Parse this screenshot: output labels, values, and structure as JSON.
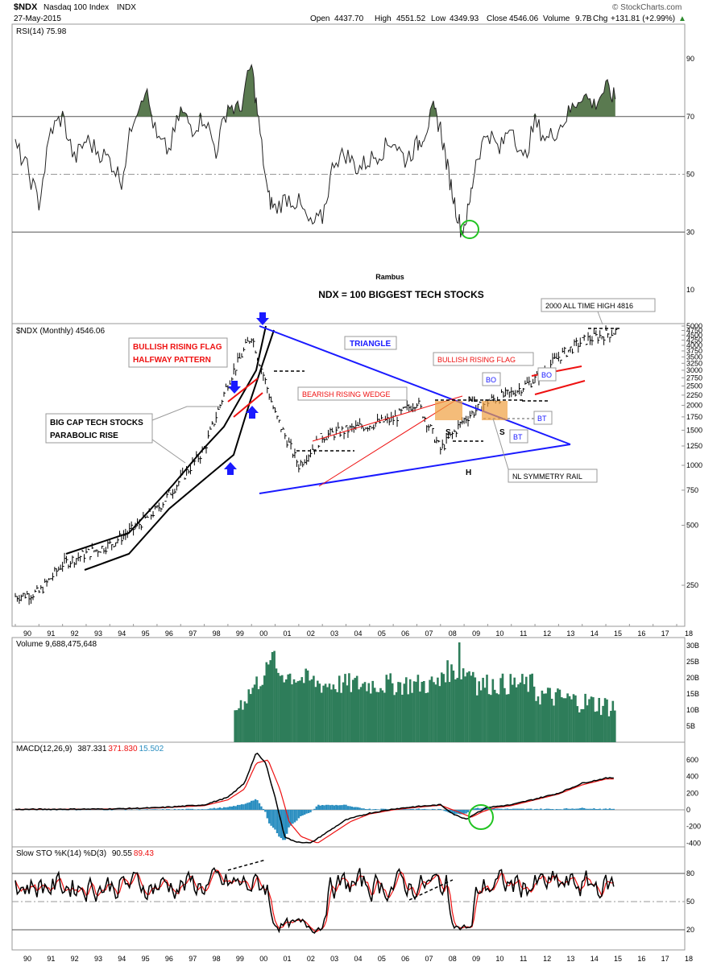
{
  "header": {
    "symbol": "$NDX",
    "name": "Nasdaq 100 Index",
    "exchange": "INDX",
    "date": "27-May-2015",
    "open_label": "Open",
    "open": "4437.70",
    "high_label": "High",
    "high": "4551.52",
    "low_label": "Low",
    "low": "4349.93",
    "close_label": "Close",
    "close": "4546.06",
    "volume_label": "Volume",
    "volume": "9.7B",
    "chg_label": "Chg",
    "chg": "+131.81 (+2.99%)",
    "chg_arrow": "▲",
    "brand": "© StockCharts.com",
    "up_color": "#2e8b2e"
  },
  "rsi": {
    "legend": "RSI(14) 75.98",
    "ticks": [
      "90",
      "70",
      "50",
      "30",
      "10"
    ],
    "ref_lines": [
      70,
      50,
      30
    ],
    "fill_color": "#5a7a50",
    "highlight_color": "#22c422"
  },
  "main": {
    "legend": "$NDX (Monthly) 4546.06",
    "author": "Rambus",
    "title": "NDX = 100 BIGGEST TECH STOCKS",
    "y_ticks": [
      "5000",
      "4750",
      "4500",
      "4250",
      "4000",
      "3750",
      "3500",
      "3250",
      "3000",
      "2750",
      "2500",
      "2250",
      "2000",
      "1750",
      "1500",
      "1250",
      "1000",
      "750",
      "500",
      "250"
    ],
    "x_ticks": [
      "90",
      "91",
      "92",
      "93",
      "94",
      "95",
      "96",
      "97",
      "98",
      "99",
      "00",
      "01",
      "02",
      "03",
      "04",
      "05",
      "06",
      "07",
      "08",
      "09",
      "10",
      "11",
      "12",
      "13",
      "14",
      "15",
      "16",
      "17",
      "18"
    ],
    "annotations": {
      "flag_halfway_1": "BULLISH RISING FLAG",
      "flag_halfway_2": "HALFWAY PATTERN",
      "parabolic_1": "BIG CAP TECH STOCKS",
      "parabolic_2": "PARABOLIC RISE",
      "triangle": "TRIANGLE",
      "wedge": "BEARISH RISING WEDGE",
      "flag2": "BULLISH RISING FLAG",
      "ath": "2000 ALL TIME HIGH 4816",
      "nl_rail": "NL SYMMETRY RAIL",
      "bo1": "BO",
      "bo2": "BO",
      "bt1": "BT",
      "bt2": "BT",
      "s1": "S",
      "s2": "S",
      "h": "H",
      "nl": "NL"
    },
    "colors": {
      "red": "#ee1111",
      "blue": "#1a1aff",
      "orange": "#f0a040"
    }
  },
  "volume": {
    "legend": "Volume 9,688,475,648",
    "ticks": [
      "30B",
      "25B",
      "20B",
      "15B",
      "10B",
      "5B"
    ],
    "bar_color": "#2e7d5a"
  },
  "macd": {
    "legend_prefix": "MACD(12,26,9)",
    "macd_value": "387.331",
    "signal_value": "371.830",
    "hist_value": "15.502",
    "ticks": [
      "600",
      "400",
      "200",
      "0",
      "-200",
      "-400"
    ],
    "hist_color": "#2a8ec0",
    "signal_color": "#ee1111"
  },
  "sto": {
    "legend_prefix": "Slow STO %K(14) %D(3)",
    "k_value": "90.55",
    "d_value": "89.43",
    "ticks": [
      "80",
      "50",
      "20"
    ],
    "x_ticks": [
      "90",
      "91",
      "92",
      "93",
      "94",
      "95",
      "96",
      "97",
      "98",
      "99",
      "00",
      "01",
      "02",
      "03",
      "04",
      "05",
      "06",
      "07",
      "08",
      "09",
      "10",
      "11",
      "12",
      "13",
      "14",
      "15",
      "16",
      "17",
      "18"
    ]
  },
  "chart_data": {
    "type": "line",
    "title": "NDX = 100 BIGGEST TECH STOCKS",
    "xlabel": "",
    "ylabel": "",
    "scale": "log",
    "ylim": [
      160,
      5000
    ],
    "grid": false,
    "x": [
      "1990",
      "1991",
      "1992",
      "1993",
      "1994",
      "1995",
      "1996",
      "1997",
      "1998",
      "1999",
      "2000",
      "2001",
      "2002",
      "2003",
      "2004",
      "2005",
      "2006",
      "2007",
      "2008",
      "2009",
      "2010",
      "2011",
      "2012",
      "2013",
      "2014",
      "2015"
    ],
    "series": [
      {
        "values": [
          220,
          230,
          320,
          360,
          400,
          480,
          600,
          850,
          1200,
          2600,
          4500,
          1800,
          1000,
          1400,
          1500,
          1600,
          1700,
          2100,
          1200,
          1700,
          2100,
          2300,
          2700,
          3500,
          4200,
          4546
        ]
      }
    ]
  }
}
